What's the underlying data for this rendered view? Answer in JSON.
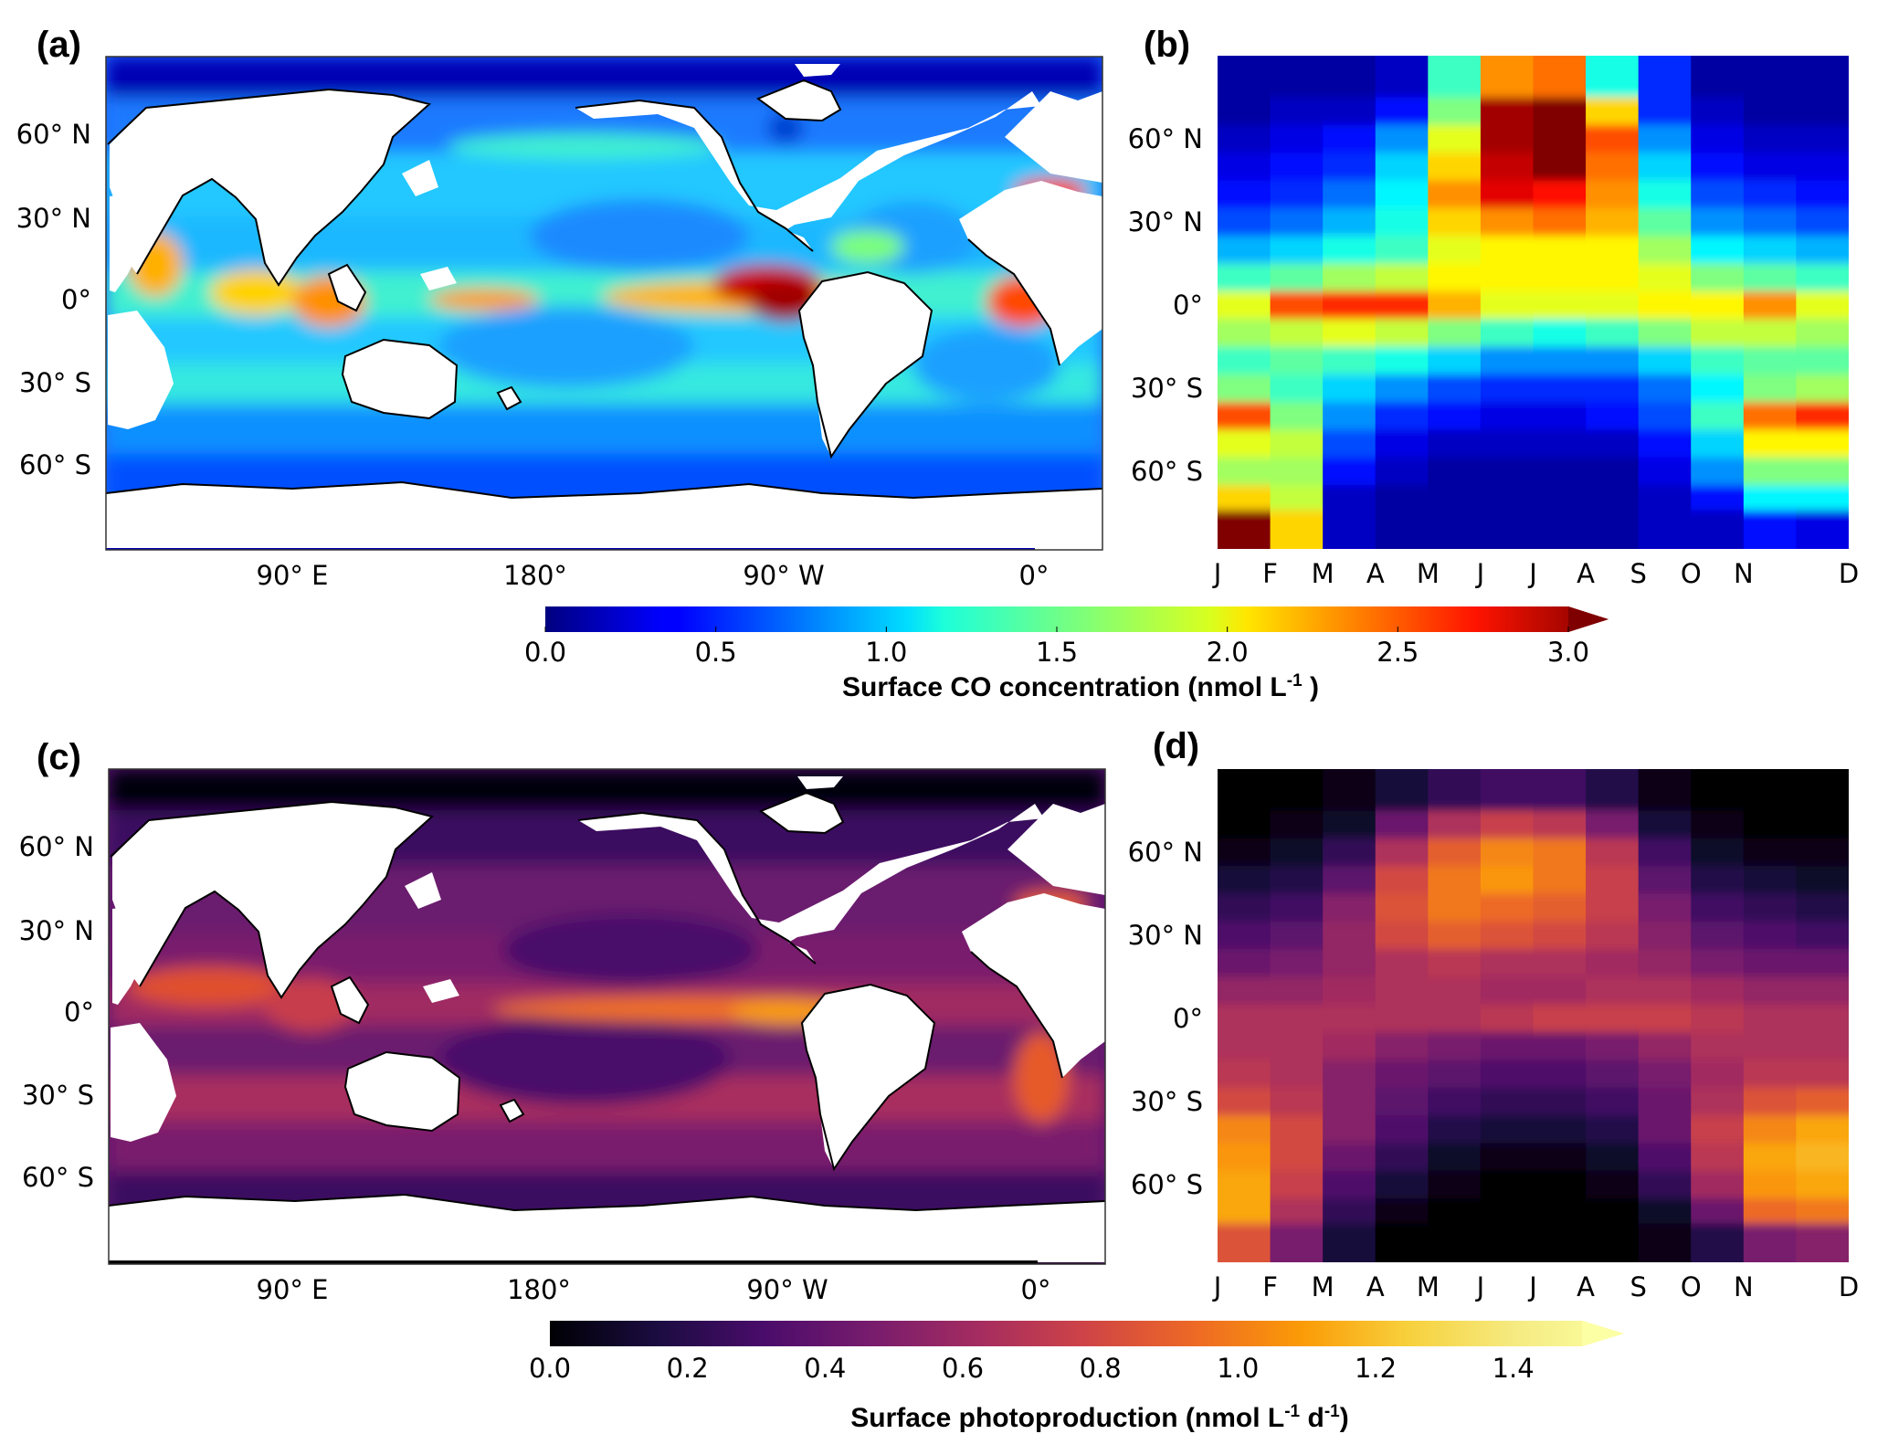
{
  "chart_data": [
    {
      "type": "heatmap",
      "panel": "(a)",
      "subtype": "global-map",
      "ytick_labels": [
        "60° N",
        "30° N",
        "0°",
        "30° S",
        "60° S"
      ],
      "xtick_labels": [
        "90° E",
        "180°",
        "90° W",
        "0°"
      ],
      "variable": "co",
      "clim": [
        0,
        3.0
      ]
    },
    {
      "type": "heatmap",
      "panel": "(b)",
      "subtype": "zonal-mean-by-month",
      "months": [
        "J",
        "F",
        "M",
        "A",
        "M",
        "J",
        "J",
        "A",
        "S",
        "O",
        "N",
        "D"
      ],
      "ytick_labels": [
        "60° N",
        "30° N",
        "0°",
        "30° S",
        "60° S"
      ],
      "latitudes": [
        80,
        70,
        60,
        50,
        40,
        30,
        20,
        10,
        0,
        -10,
        -20,
        -30,
        -40,
        -50,
        -60,
        -70,
        -78
      ],
      "values": [
        [
          0.1,
          0.1,
          0.1,
          0.2,
          1.3,
          2.2,
          2.3,
          1.2,
          0.5,
          0.1,
          0.1,
          0.1
        ],
        [
          0.1,
          0.2,
          0.2,
          0.4,
          1.5,
          2.9,
          3.0,
          2.0,
          0.5,
          0.2,
          0.1,
          0.1
        ],
        [
          0.2,
          0.3,
          0.4,
          0.8,
          1.8,
          2.9,
          3.0,
          2.4,
          0.8,
          0.3,
          0.2,
          0.2
        ],
        [
          0.3,
          0.4,
          0.5,
          1.0,
          2.0,
          2.8,
          3.0,
          2.3,
          1.0,
          0.4,
          0.3,
          0.3
        ],
        [
          0.4,
          0.5,
          0.7,
          1.1,
          2.2,
          2.7,
          2.6,
          2.2,
          1.2,
          0.6,
          0.5,
          0.4
        ],
        [
          0.6,
          0.7,
          0.9,
          1.2,
          2.0,
          2.2,
          2.3,
          2.1,
          1.4,
          0.8,
          0.7,
          0.6
        ],
        [
          0.9,
          1.0,
          1.2,
          1.3,
          1.8,
          1.9,
          1.9,
          1.9,
          1.6,
          1.1,
          1.0,
          0.9
        ],
        [
          1.3,
          1.4,
          1.6,
          1.7,
          1.9,
          1.9,
          1.9,
          1.9,
          1.8,
          1.5,
          1.4,
          1.3
        ],
        [
          1.8,
          2.4,
          2.5,
          2.5,
          2.1,
          1.8,
          1.8,
          1.8,
          1.9,
          1.9,
          2.2,
          1.8
        ],
        [
          1.6,
          1.7,
          1.8,
          1.7,
          1.5,
          1.3,
          1.2,
          1.3,
          1.5,
          1.7,
          1.7,
          1.6
        ],
        [
          1.3,
          1.4,
          1.3,
          1.2,
          1.0,
          0.8,
          0.8,
          0.8,
          1.0,
          1.3,
          1.4,
          1.4
        ],
        [
          1.5,
          1.3,
          1.0,
          0.8,
          0.6,
          0.5,
          0.5,
          0.5,
          0.7,
          1.1,
          1.5,
          1.6
        ],
        [
          2.4,
          1.5,
          0.8,
          0.5,
          0.4,
          0.3,
          0.3,
          0.4,
          0.6,
          1.3,
          2.3,
          2.5
        ],
        [
          1.8,
          1.7,
          0.6,
          0.3,
          0.2,
          0.2,
          0.2,
          0.2,
          0.4,
          1.0,
          1.9,
          1.9
        ],
        [
          1.6,
          1.6,
          0.4,
          0.2,
          0.1,
          0.1,
          0.1,
          0.1,
          0.3,
          0.8,
          1.5,
          1.5
        ],
        [
          2.0,
          1.7,
          0.2,
          0.1,
          0.1,
          0.1,
          0.1,
          0.1,
          0.2,
          0.4,
          1.1,
          1.1
        ],
        [
          3.0,
          2.0,
          0.2,
          0.1,
          0.1,
          0.1,
          0.1,
          0.1,
          0.2,
          0.2,
          0.4,
          0.3
        ]
      ],
      "clim": [
        0,
        3.0
      ]
    },
    {
      "type": "heatmap",
      "panel": "(c)",
      "subtype": "global-map",
      "ytick_labels": [
        "60° N",
        "30° N",
        "0°",
        "30° S",
        "60° S"
      ],
      "xtick_labels": [
        "90° E",
        "180°",
        "90° W",
        "0°"
      ],
      "variable": "photo",
      "clim": [
        0,
        1.5
      ]
    },
    {
      "type": "heatmap",
      "panel": "(d)",
      "subtype": "zonal-mean-by-month",
      "months": [
        "J",
        "F",
        "M",
        "A",
        "M",
        "J",
        "J",
        "A",
        "S",
        "O",
        "N",
        "D"
      ],
      "ytick_labels": [
        "60° N",
        "30° N",
        "0°",
        "30° S",
        "60° S"
      ],
      "latitudes": [
        80,
        70,
        60,
        50,
        40,
        30,
        20,
        10,
        0,
        -10,
        -20,
        -30,
        -40,
        -50,
        -60,
        -70,
        -78
      ],
      "values": [
        [
          0.0,
          0.0,
          0.05,
          0.15,
          0.25,
          0.3,
          0.3,
          0.2,
          0.05,
          0.0,
          0.0,
          0.0
        ],
        [
          0.0,
          0.05,
          0.1,
          0.45,
          0.7,
          0.8,
          0.75,
          0.5,
          0.15,
          0.05,
          0.0,
          0.0
        ],
        [
          0.05,
          0.1,
          0.25,
          0.7,
          0.95,
          1.1,
          1.05,
          0.75,
          0.3,
          0.1,
          0.05,
          0.05
        ],
        [
          0.15,
          0.2,
          0.4,
          0.85,
          1.05,
          1.15,
          1.05,
          0.8,
          0.4,
          0.2,
          0.15,
          0.1
        ],
        [
          0.25,
          0.3,
          0.55,
          0.9,
          1.05,
          1.0,
          0.95,
          0.8,
          0.5,
          0.3,
          0.25,
          0.2
        ],
        [
          0.35,
          0.4,
          0.6,
          0.85,
          0.95,
          0.9,
          0.85,
          0.75,
          0.55,
          0.4,
          0.35,
          0.3
        ],
        [
          0.45,
          0.5,
          0.6,
          0.7,
          0.75,
          0.7,
          0.7,
          0.65,
          0.6,
          0.5,
          0.45,
          0.45
        ],
        [
          0.6,
          0.6,
          0.65,
          0.7,
          0.7,
          0.65,
          0.65,
          0.7,
          0.7,
          0.65,
          0.6,
          0.6
        ],
        [
          0.7,
          0.7,
          0.7,
          0.7,
          0.7,
          0.75,
          0.8,
          0.8,
          0.8,
          0.75,
          0.7,
          0.7
        ],
        [
          0.7,
          0.7,
          0.65,
          0.55,
          0.5,
          0.45,
          0.45,
          0.5,
          0.6,
          0.7,
          0.7,
          0.7
        ],
        [
          0.75,
          0.7,
          0.55,
          0.45,
          0.4,
          0.35,
          0.35,
          0.4,
          0.5,
          0.65,
          0.75,
          0.75
        ],
        [
          0.85,
          0.75,
          0.55,
          0.4,
          0.3,
          0.25,
          0.25,
          0.3,
          0.45,
          0.7,
          0.9,
          0.95
        ],
        [
          1.1,
          0.85,
          0.55,
          0.35,
          0.2,
          0.15,
          0.15,
          0.2,
          0.45,
          0.8,
          1.1,
          1.2
        ],
        [
          1.15,
          0.85,
          0.45,
          0.25,
          0.1,
          0.05,
          0.05,
          0.1,
          0.35,
          0.75,
          1.2,
          1.25
        ],
        [
          1.2,
          0.8,
          0.35,
          0.15,
          0.05,
          0.0,
          0.0,
          0.05,
          0.25,
          0.65,
          1.15,
          1.2
        ],
        [
          1.2,
          0.7,
          0.25,
          0.05,
          0.0,
          0.0,
          0.0,
          0.0,
          0.1,
          0.45,
          1.0,
          1.05
        ],
        [
          0.9,
          0.5,
          0.15,
          0.0,
          0.0,
          0.0,
          0.0,
          0.0,
          0.05,
          0.2,
          0.5,
          0.55
        ]
      ],
      "clim": [
        0,
        1.5
      ]
    }
  ],
  "colorbars": {
    "top": {
      "ticks": [
        "0.0",
        "0.5",
        "1.0",
        "1.5",
        "2.0",
        "2.5",
        "3.0"
      ],
      "label": "Surface CO concentration (nmol L",
      "label_sup": "-1",
      "label_end": " )"
    },
    "bottom": {
      "ticks": [
        "0.0",
        "0.2",
        "0.4",
        "0.6",
        "0.8",
        "1.0",
        "1.2",
        "1.4"
      ],
      "label": "Surface photoproduction (nmol L",
      "label_sup1": "-1",
      "label_mid": " d",
      "label_sup2": "-1",
      "label_end": ")"
    }
  },
  "colors": {
    "land": "#ffffff",
    "coast": "#000000",
    "jet_low": "#00007f",
    "jet_high": "#7f0000",
    "inferno_low": "#000004",
    "inferno_high": "#fcffa4"
  }
}
